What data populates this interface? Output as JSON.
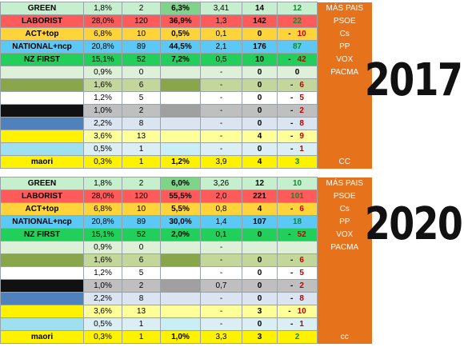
{
  "colors": {
    "green": "#c6efce",
    "laborist": "#ff5b5b",
    "act": "#ffd43b",
    "national": "#5bc8f5",
    "nzfirst": "#22cf5b",
    "pale_green": "#dff0d8",
    "olive": "#8aa64a",
    "white": "#ffffff",
    "black": "#111111",
    "blue": "#4f81bd",
    "yellow": "#fff200",
    "light_blue": "#9fe0f0",
    "side_orange": "#e6721b"
  },
  "year_2017": "2017",
  "year_2020": "2020",
  "tables": [
    {
      "rows": [
        {
          "name": "GREEN",
          "c1": "1,8%",
          "c2": "2",
          "c3": "6,3%",
          "c4": "3,41",
          "c5": "14",
          "c6": "12",
          "c6color": "green",
          "side": "MÁS PAIS",
          "row": "green",
          "cell3": "#7fd48a"
        },
        {
          "name": "LABORIST",
          "c1": "28,0%",
          "c2": "120",
          "c3": "36,9%",
          "c4": "1,3",
          "c5": "142",
          "c6": "22",
          "c6color": "green",
          "side": "PSOE",
          "row": "laborist",
          "cell3": "#ff5b5b"
        },
        {
          "name": "ACT+top",
          "c1": "6,8%",
          "c2": "10",
          "c3": "0,5%",
          "c4": "0,1",
          "c5": "0",
          "c6": "10",
          "c6color": "red",
          "c6prefix": "-",
          "side": "Cs",
          "row": "act",
          "cell3": "#ffd43b"
        },
        {
          "name": "NATIONAL+ncp",
          "c1": "20,8%",
          "c2": "89",
          "c3": "44,5%",
          "c4": "2,1",
          "c5": "176",
          "c6": "87",
          "c6color": "green",
          "side": "PP",
          "row": "national",
          "cell3": "#5bc8f5"
        },
        {
          "name": "NZ FIRST",
          "c1": "15,1%",
          "c2": "52",
          "c3": "7,2%",
          "c4": "0,5",
          "c5": "10",
          "c6": "42",
          "c6color": "red",
          "c6prefix": "-",
          "side": "VOX",
          "row": "nzfirst",
          "cell3": "#22cf5b"
        },
        {
          "name": "",
          "c1": "0,9%",
          "c2": "0",
          "c3": "",
          "c4": "-",
          "c5": "0",
          "c6": "0",
          "c6color": "",
          "side": "PACMA",
          "row": "pale_green",
          "cell3": "#dff0d8"
        },
        {
          "name": "",
          "c1": "1,6%",
          "c2": "6",
          "c3": "",
          "c4": "-",
          "c5": "0",
          "c6": "6",
          "c6color": "red",
          "c6prefix": "-",
          "side": "",
          "row": "olive",
          "cell3": "#8aa64a"
        },
        {
          "name": "",
          "c1": "1,2%",
          "c2": "5",
          "c3": "",
          "c4": "-",
          "c5": "0",
          "c6": "5",
          "c6color": "red",
          "c6prefix": "-",
          "side": "",
          "row": "white",
          "cell3": "#ffffff"
        },
        {
          "name": "",
          "c1": "1,0%",
          "c2": "2",
          "c3": "",
          "c4": "-",
          "c5": "0",
          "c6": "2",
          "c6color": "red",
          "c6prefix": "-",
          "side": "",
          "row": "black",
          "cell3": "#a0a0a0"
        },
        {
          "name": "",
          "c1": "2,2%",
          "c2": "8",
          "c3": "",
          "c4": "-",
          "c5": "0",
          "c6": "8",
          "c6color": "red",
          "c6prefix": "-",
          "side": "",
          "row": "blue",
          "cell3": "#dbe5f1"
        },
        {
          "name": "",
          "c1": "3,6%",
          "c2": "13",
          "c3": "",
          "c4": "-",
          "c5": "4",
          "c6": "9",
          "c6color": "red",
          "c6prefix": "-",
          "side": "",
          "row": "yellow",
          "cell3": "#ffff99"
        },
        {
          "name": "",
          "c1": "0,5%",
          "c2": "1",
          "c3": "",
          "c4": "-",
          "c5": "0",
          "c6": "1",
          "c6color": "red",
          "c6prefix": "-",
          "side": "",
          "row": "light_blue",
          "cell3": "#c9eef6"
        },
        {
          "name": "maori",
          "c1": "0,3%",
          "c2": "1",
          "c3": "1,2%",
          "c4": "3,9",
          "c5": "4",
          "c6": "3",
          "c6color": "green",
          "side": "CC",
          "row": "yellow",
          "cell3": "#fff200"
        }
      ]
    },
    {
      "rows": [
        {
          "name": "GREEN",
          "c1": "1,8%",
          "c2": "2",
          "c3": "6,0%",
          "c4": "3,26",
          "c5": "12",
          "c6": "10",
          "c6color": "green",
          "side": "MÁS PAIS",
          "row": "green",
          "cell3": "#7fd48a"
        },
        {
          "name": "LABORIST",
          "c1": "28,0%",
          "c2": "120",
          "c3": "55,5%",
          "c4": "2,0",
          "c5": "221",
          "c6": "101",
          "c6color": "green",
          "side": "PSOE",
          "row": "laborist",
          "cell3": "#ff5b5b"
        },
        {
          "name": "ACT+top",
          "c1": "6,8%",
          "c2": "10",
          "c3": "5,5%",
          "c4": "0,8",
          "c5": "4",
          "c6": "6",
          "c6color": "red",
          "c6prefix": "-",
          "side": "Cs",
          "row": "act",
          "cell3": "#ffd43b"
        },
        {
          "name": "NATIONAL+ncp",
          "c1": "20,8%",
          "c2": "89",
          "c3": "30,0%",
          "c4": "1,4",
          "c5": "107",
          "c6": "18",
          "c6color": "green",
          "side": "PP",
          "row": "national",
          "cell3": "#5bc8f5"
        },
        {
          "name": "NZ FIRST",
          "c1": "15,1%",
          "c2": "52",
          "c3": "2,0%",
          "c4": "0,1",
          "c5": "0",
          "c6": "52",
          "c6color": "red",
          "c6prefix": "-",
          "side": "VOX",
          "row": "nzfirst",
          "cell3": "#22cf5b"
        },
        {
          "name": "",
          "c1": "0,9%",
          "c2": "0",
          "c3": "",
          "c4": "-",
          "c5": "",
          "c6": "",
          "c6color": "",
          "side": "PACMA",
          "row": "pale_green",
          "cell3": "#dff0d8"
        },
        {
          "name": "",
          "c1": "1,6%",
          "c2": "6",
          "c3": "",
          "c4": "-",
          "c5": "0",
          "c6": "6",
          "c6color": "red",
          "c6prefix": "-",
          "side": "",
          "row": "olive",
          "cell3": "#8aa64a"
        },
        {
          "name": "",
          "c1": "1,2%",
          "c2": "5",
          "c3": "",
          "c4": "-",
          "c5": "0",
          "c6": "5",
          "c6color": "red",
          "c6prefix": "-",
          "side": "",
          "row": "white",
          "cell3": "#ffffff"
        },
        {
          "name": "",
          "c1": "1,0%",
          "c2": "2",
          "c3": "",
          "c4": "0,7",
          "c5": "0",
          "c6": "2",
          "c6color": "red",
          "c6prefix": "-",
          "side": "",
          "row": "black",
          "cell3": "#a0a0a0"
        },
        {
          "name": "",
          "c1": "2,2%",
          "c2": "8",
          "c3": "",
          "c4": "-",
          "c5": "0",
          "c6": "8",
          "c6color": "red",
          "c6prefix": "-",
          "side": "",
          "row": "blue",
          "cell3": "#dbe5f1"
        },
        {
          "name": "",
          "c1": "3,6%",
          "c2": "13",
          "c3": "",
          "c4": "-",
          "c5": "3",
          "c6": "10",
          "c6color": "red",
          "c6prefix": "-",
          "side": "",
          "row": "yellow",
          "cell3": "#ffff99"
        },
        {
          "name": "",
          "c1": "0,5%",
          "c2": "1",
          "c3": "",
          "c4": "-",
          "c5": "0",
          "c6": "1",
          "c6color": "red",
          "c6prefix": "-",
          "side": "",
          "row": "light_blue",
          "cell3": "#c9eef6"
        },
        {
          "name": "maori",
          "c1": "0,3%",
          "c2": "1",
          "c3": "1,0%",
          "c4": "3,3",
          "c5": "3",
          "c6": "2",
          "c6color": "green",
          "side": "cc",
          "row": "yellow",
          "cell3": "#fff200"
        }
      ]
    }
  ]
}
